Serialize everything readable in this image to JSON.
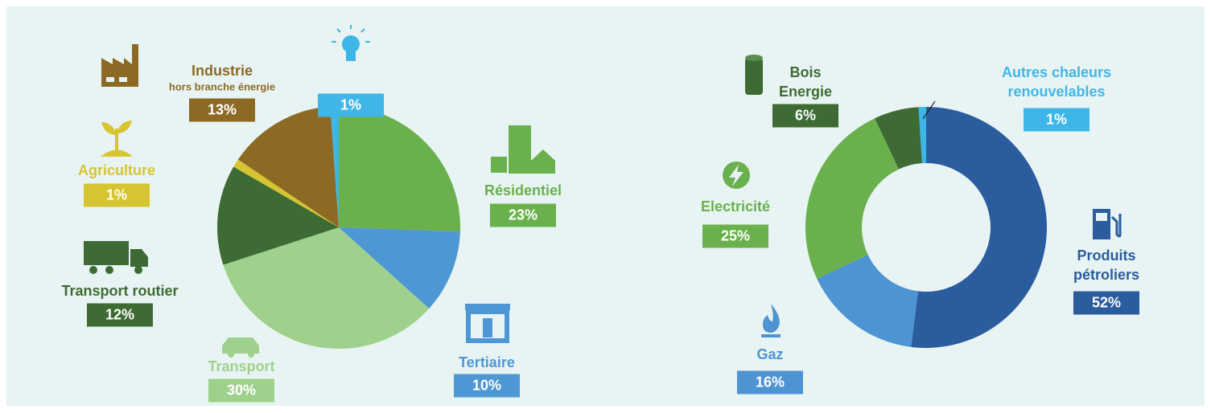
{
  "chart_data": [
    {
      "type": "pie",
      "categories": [
        "Résidentiel",
        "Tertiaire",
        "Transport",
        "Transport routier",
        "Agriculture",
        "Industrie",
        null
      ],
      "sublabels": [
        null,
        null,
        null,
        null,
        null,
        "hors branche énergie",
        null
      ],
      "values": [
        23,
        10,
        30,
        12,
        1,
        13,
        1
      ],
      "value_labels": [
        "23%",
        "10%",
        "30%",
        "12%",
        "1%",
        "13%",
        "1%"
      ],
      "colors": [
        "#6ab04c",
        "#4e97d5",
        "#9fd18d",
        "#3e6b33",
        "#d6c531",
        "#8c6a24",
        "#3fb6e8"
      ]
    },
    {
      "type": "donut",
      "categories": [
        "Produits pétroliers",
        "Gaz",
        "Electricité",
        "Bois Energie",
        "Autres chaleurs renouvelables"
      ],
      "values": [
        52,
        16,
        25,
        6,
        1
      ],
      "value_labels": [
        "52%",
        "16%",
        "25%",
        "6%",
        "1%"
      ],
      "colors": [
        "#2b5c9e",
        "#4e94d2",
        "#6ab04c",
        "#3e6b33",
        "#3fb6e8"
      ]
    }
  ]
}
